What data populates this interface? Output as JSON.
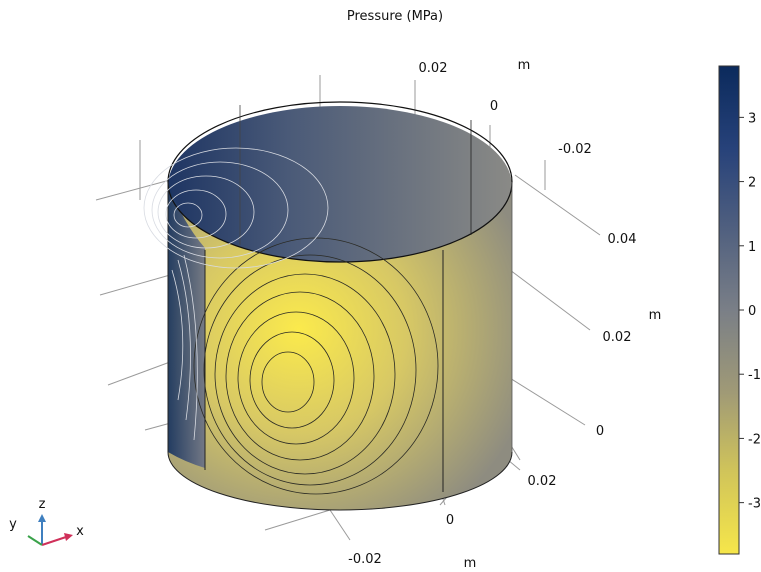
{
  "chart_data": {
    "type": "surface-3d",
    "title": "Pressure (MPa)",
    "colorbar": {
      "ticks": [
        "3",
        "2",
        "1",
        "0",
        "-1",
        "-2",
        "-3"
      ],
      "colors": [
        "#0b2a5c",
        "#27427a",
        "#4f5f7f",
        "#7a7f87",
        "#a09a76",
        "#d0c45a",
        "#f6e64a"
      ],
      "range": [
        -3.8,
        3.8
      ]
    },
    "axes": {
      "unit_label": "m",
      "x_ticks": [
        "0.02",
        "0",
        "-0.02"
      ],
      "x_ticks_lower": [
        "0.02",
        "0",
        "-0.02"
      ],
      "y_ticks": [
        "0.04",
        "0.02",
        "0"
      ],
      "triad": {
        "x": "x",
        "y": "y",
        "z": "z"
      }
    },
    "field_extrema": {
      "max_region": "left-back",
      "min_region": "front-center"
    }
  }
}
